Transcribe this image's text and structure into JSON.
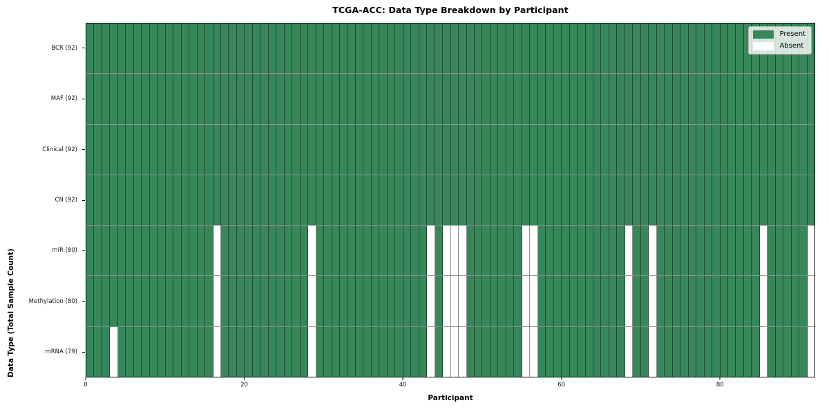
{
  "chart_data": {
    "type": "heatmap",
    "title": "TCGA-ACC: Data Type Breakdown by Participant",
    "xlabel": "Participant",
    "ylabel": "Data Type (Total Sample Count)",
    "n_columns": 92,
    "xlim": [
      0,
      92
    ],
    "x_ticks": [
      0,
      20,
      40,
      60,
      80
    ],
    "grid": true,
    "legend": {
      "position": "upper right",
      "entries": [
        {
          "label": "Present",
          "color": "#38875A"
        },
        {
          "label": "Absent",
          "color": "#FFFFFF"
        }
      ]
    },
    "rows": [
      {
        "label": "BCR (92)",
        "present_count": 92,
        "absent_columns": []
      },
      {
        "label": "MAF (92)",
        "present_count": 92,
        "absent_columns": []
      },
      {
        "label": "Clinical (92)",
        "present_count": 92,
        "absent_columns": []
      },
      {
        "label": "CN (92)",
        "present_count": 92,
        "absent_columns": []
      },
      {
        "label": "miR (80)",
        "present_count": 80,
        "absent_columns": [
          16,
          28,
          43,
          45,
          46,
          47,
          55,
          56,
          68,
          71,
          85,
          91
        ]
      },
      {
        "label": "Methylation (80)",
        "present_count": 80,
        "absent_columns": [
          16,
          28,
          43,
          45,
          46,
          47,
          55,
          56,
          68,
          71,
          85,
          91
        ]
      },
      {
        "label": "mRNA (79)",
        "present_count": 79,
        "absent_columns": [
          3,
          16,
          28,
          43,
          45,
          46,
          47,
          55,
          56,
          68,
          71,
          85,
          91
        ]
      }
    ],
    "colors": {
      "present": "#38875A",
      "absent": "#FFFFFF",
      "cell_edge": "rgba(0,0,0,0.45)",
      "axis": "#000000",
      "background": "#FFFFFF"
    }
  }
}
